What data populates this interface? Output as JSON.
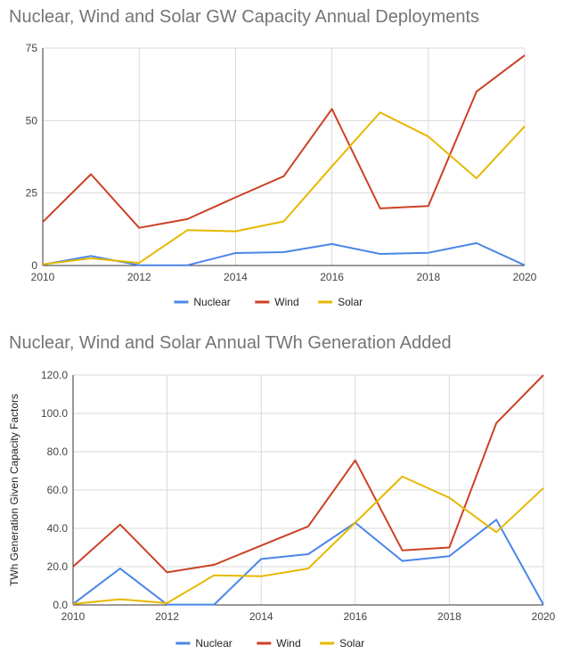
{
  "colors": {
    "Nuclear": "#4a86e8",
    "Wind": "#cc4125",
    "Solar": "#e6b800",
    "grid": "#d9d9d9",
    "axis": "#333333"
  },
  "chart_data": [
    {
      "type": "line",
      "title": "Nuclear, Wind  and Solar GW Capacity Annual Deployments",
      "xlabel": "",
      "ylabel": "",
      "x": [
        2010,
        2011,
        2012,
        2013,
        2014,
        2015,
        2016,
        2017,
        2018,
        2019,
        2020
      ],
      "xlim": [
        2010,
        2020
      ],
      "xticks": [
        "2010",
        "2012",
        "2014",
        "2016",
        "2018",
        "2020"
      ],
      "ylim": [
        0,
        75
      ],
      "yticks": [
        "0",
        "25",
        "50",
        "75"
      ],
      "grid": true,
      "legend_position": "bottom",
      "series": [
        {
          "name": "Nuclear",
          "values": [
            0.3,
            3.3,
            0.1,
            0.1,
            4.3,
            4.6,
            7.4,
            4.0,
            4.4,
            7.7,
            0.1
          ]
        },
        {
          "name": "Wind",
          "values": [
            15,
            31.5,
            13,
            16,
            23.5,
            30.8,
            54,
            19.7,
            20.5,
            60,
            72.5
          ]
        },
        {
          "name": "Solar",
          "values": [
            0.4,
            2.5,
            0.9,
            12.2,
            11.8,
            15.2,
            34.2,
            52.8,
            44.5,
            30.1,
            48
          ]
        }
      ]
    },
    {
      "type": "line",
      "title": "Nuclear, Wind  and Solar Annual TWh Generation Added",
      "xlabel": "",
      "ylabel": "TWh Generation Given Capacity Factors",
      "x": [
        2010,
        2011,
        2012,
        2013,
        2014,
        2015,
        2016,
        2017,
        2018,
        2019,
        2020
      ],
      "xlim": [
        2010,
        2020
      ],
      "xticks": [
        "2010",
        "2012",
        "2014",
        "2016",
        "2018",
        "2020"
      ],
      "ylim": [
        0,
        120
      ],
      "yticks": [
        "0.0",
        "20.0",
        "40.0",
        "60.0",
        "80.0",
        "100.0",
        "120.0"
      ],
      "grid": true,
      "legend_position": "bottom",
      "series": [
        {
          "name": "Nuclear",
          "values": [
            0.5,
            19,
            0.2,
            0.2,
            24,
            26.5,
            43,
            23,
            25.5,
            44.5,
            0.2
          ]
        },
        {
          "name": "Wind",
          "values": [
            20,
            42,
            17,
            21,
            31,
            41,
            75.5,
            28.5,
            30,
            95,
            120
          ]
        },
        {
          "name": "Solar",
          "values": [
            0.5,
            3,
            1,
            15.5,
            15,
            19,
            43,
            67,
            56,
            38,
            61
          ]
        }
      ]
    }
  ]
}
